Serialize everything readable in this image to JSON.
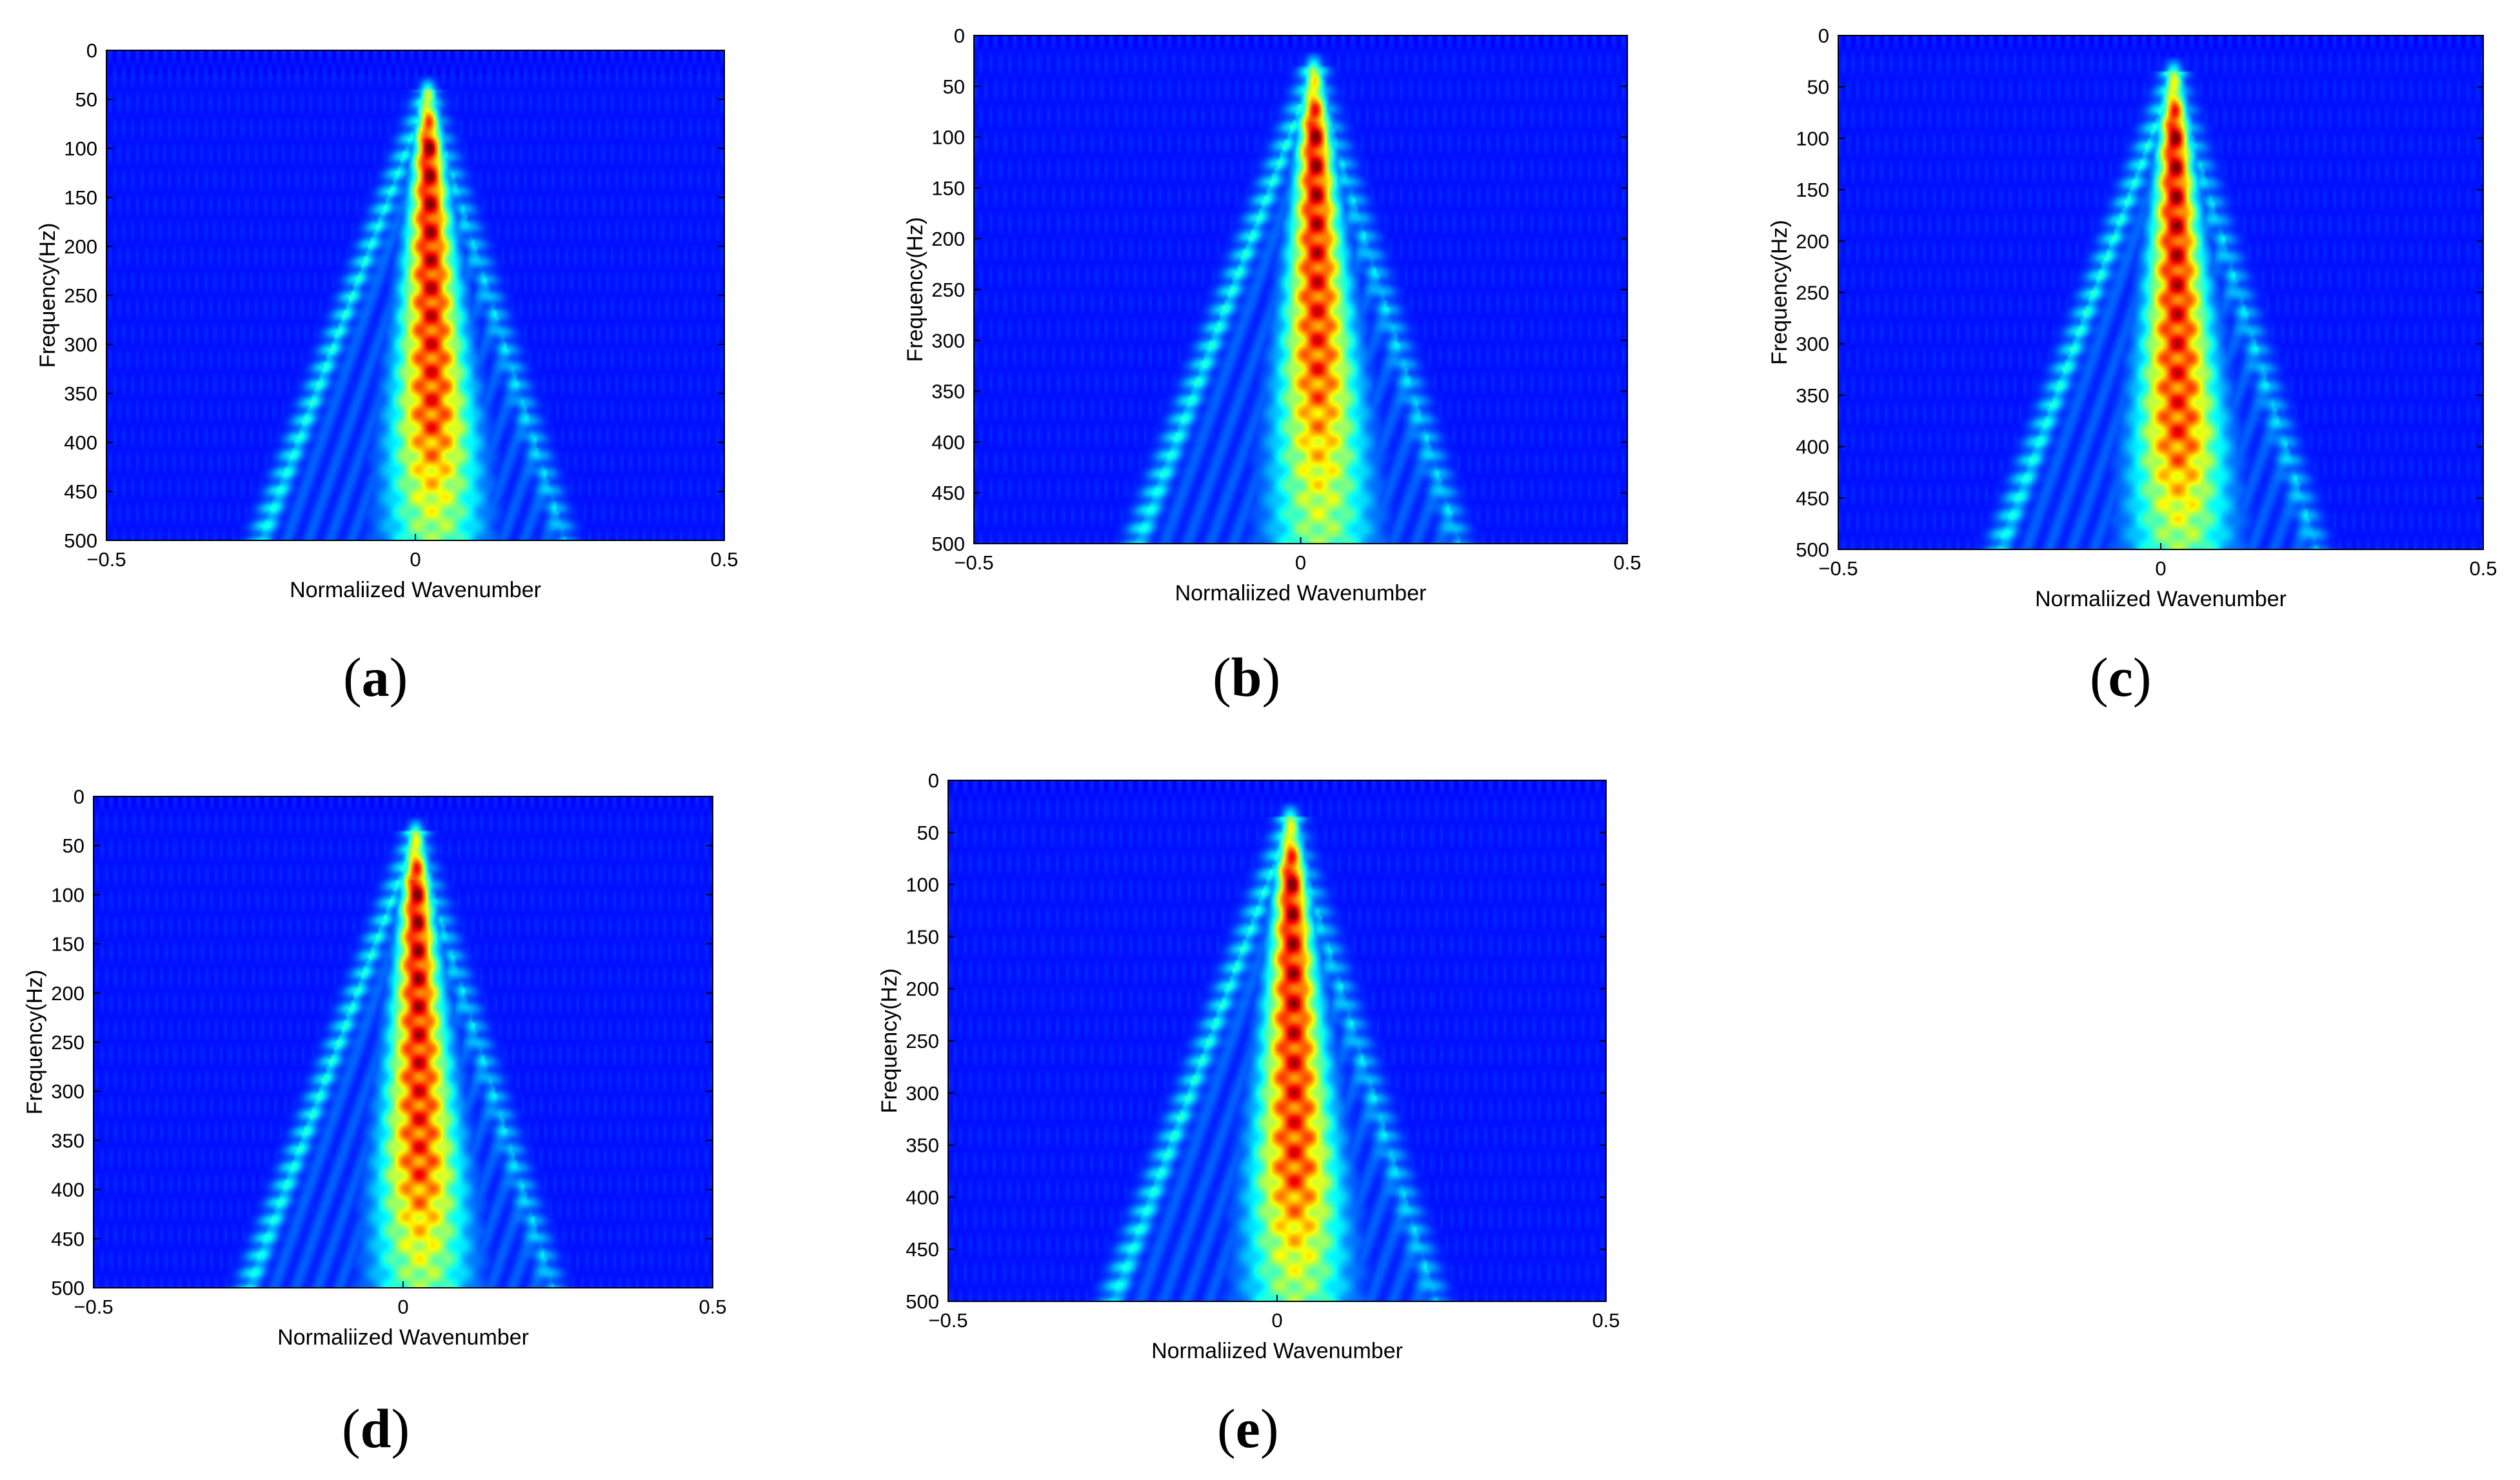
{
  "colormap": "jet",
  "colors": {
    "background_low": "#00008f",
    "peak": "#ff0000",
    "axis": "#000000"
  },
  "panels": [
    {
      "id": "a",
      "caption": "a"
    },
    {
      "id": "b",
      "caption": "b"
    },
    {
      "id": "c",
      "caption": "c"
    },
    {
      "id": "d",
      "caption": "d"
    },
    {
      "id": "e",
      "caption": "e"
    }
  ],
  "chart_data": [
    {
      "type": "heatmap",
      "panel": "a",
      "title": "",
      "xlabel": "Normaliized Wavenumber",
      "ylabel": "Frequency(Hz)",
      "xlim": [
        -0.5,
        0.5
      ],
      "ylim": [
        0,
        500
      ],
      "y_reversed": true,
      "xticks": [
        "−0.5",
        "0",
        "0.5"
      ],
      "yticks": [
        "0",
        "50",
        "100",
        "150",
        "200",
        "250",
        "300",
        "350",
        "400",
        "450",
        "500"
      ],
      "energy_peak": {
        "x": 0.02,
        "y_range": [
          90,
          380
        ]
      },
      "cone_apex_frequency": 40
    },
    {
      "type": "heatmap",
      "panel": "b",
      "title": "",
      "xlabel": "Normaliized Wavenumber",
      "ylabel": "Frequency(Hz)",
      "xlim": [
        -0.5,
        0.5
      ],
      "ylim": [
        0,
        500
      ],
      "y_reversed": true,
      "xticks": [
        "−0.5",
        "0",
        "0.5"
      ],
      "yticks": [
        "0",
        "50",
        "100",
        "150",
        "200",
        "250",
        "300",
        "350",
        "400",
        "450",
        "500"
      ],
      "energy_peak": {
        "x": 0.02,
        "y_range": [
          85,
          330
        ]
      },
      "cone_apex_frequency": 30
    },
    {
      "type": "heatmap",
      "panel": "c",
      "title": "",
      "xlabel": "Normaliized Wavenumber",
      "ylabel": "Frequency(Hz)",
      "xlim": [
        -0.5,
        0.5
      ],
      "ylim": [
        0,
        500
      ],
      "y_reversed": true,
      "xticks": [
        "−0.5",
        "0",
        "0.5"
      ],
      "yticks": [
        "0",
        "50",
        "100",
        "150",
        "200",
        "250",
        "300",
        "350",
        "400",
        "450",
        "500"
      ],
      "energy_peak": {
        "x": 0.02,
        "y_range": [
          85,
          390
        ]
      },
      "cone_apex_frequency": 35
    },
    {
      "type": "heatmap",
      "panel": "d",
      "title": "",
      "xlabel": "Normaliized Wavenumber",
      "ylabel": "Frequency(Hz)",
      "xlim": [
        -0.5,
        0.5
      ],
      "ylim": [
        0,
        500
      ],
      "y_reversed": true,
      "xticks": [
        "−0.5",
        "0",
        "0.5"
      ],
      "yticks": [
        "0",
        "50",
        "100",
        "150",
        "200",
        "250",
        "300",
        "350",
        "400",
        "450",
        "500"
      ],
      "energy_peak": {
        "x": 0.02,
        "y_range": [
          85,
          380
        ]
      },
      "cone_apex_frequency": 35
    },
    {
      "type": "heatmap",
      "panel": "e",
      "title": "",
      "xlabel": "Normaliized Wavenumber",
      "ylabel": "Frequency(Hz)",
      "xlim": [
        -0.5,
        0.5
      ],
      "ylim": [
        0,
        500
      ],
      "y_reversed": true,
      "xticks": [
        "−0.5",
        "0",
        "0.5"
      ],
      "yticks": [
        "0",
        "50",
        "100",
        "150",
        "200",
        "250",
        "300",
        "350",
        "400",
        "450",
        "500"
      ],
      "energy_peak": {
        "x": 0.02,
        "y_range": [
          85,
          380
        ]
      },
      "cone_apex_frequency": 35
    }
  ]
}
